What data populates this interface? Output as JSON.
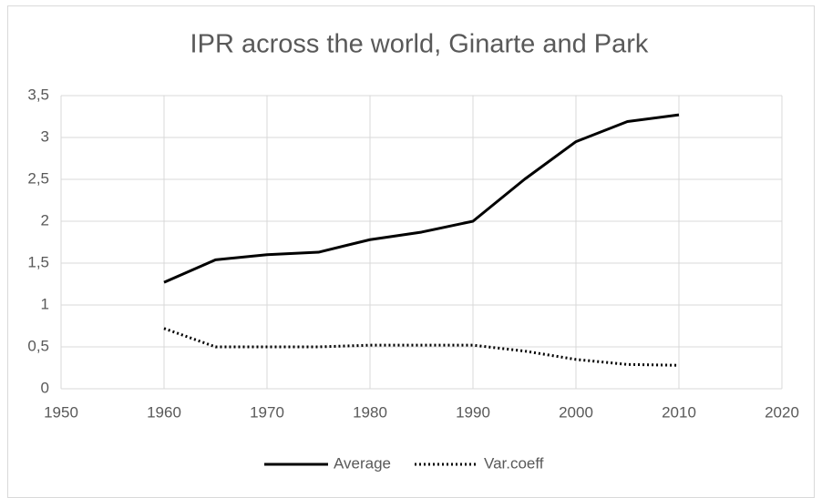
{
  "chart_data": {
    "type": "line",
    "title": "IPR across the world, Ginarte and Park",
    "x": [
      1960,
      1965,
      1970,
      1975,
      1980,
      1985,
      1990,
      1995,
      2000,
      2005,
      2010
    ],
    "series": [
      {
        "name": "Average",
        "color": "#000000",
        "dash": "solid",
        "values": [
          1.27,
          1.54,
          1.6,
          1.63,
          1.78,
          1.87,
          2.0,
          2.5,
          2.95,
          3.19,
          3.27
        ]
      },
      {
        "name": "Var.coeff",
        "color": "#000000",
        "dash": "dotted",
        "values": [
          0.72,
          0.5,
          0.5,
          0.5,
          0.52,
          0.52,
          0.52,
          0.45,
          0.35,
          0.29,
          0.28
        ]
      }
    ],
    "xlim": [
      1950,
      2020
    ],
    "xticks": [
      1950,
      1960,
      1970,
      1980,
      1990,
      2000,
      2010,
      2020
    ],
    "ylim": [
      0,
      3.5
    ],
    "yticks": [
      0,
      {
        "value": 0.5,
        "label": "0,5"
      },
      1,
      {
        "value": 1.5,
        "label": "1,5"
      },
      2,
      {
        "value": 2.5,
        "label": "2,5"
      },
      3,
      {
        "value": 3.5,
        "label": "3,5"
      }
    ],
    "grid": true,
    "legend": "bottom"
  }
}
